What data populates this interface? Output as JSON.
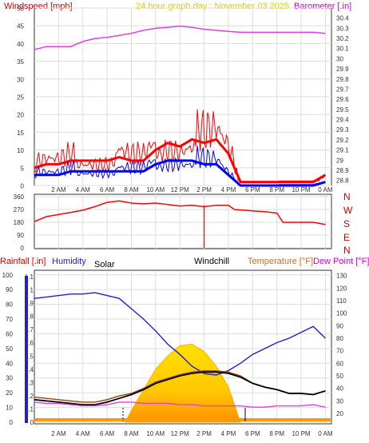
{
  "chart_data": [
    {
      "type": "line",
      "panel": "wind-barometer",
      "title": "24 hour graph day : November 03 2025",
      "left_label": "Windspeed [mph]",
      "right_label": "Barometer [.in]",
      "x_ticks": [
        "2 AM",
        "4 AM",
        "6 AM",
        "8 AM",
        "10 AM",
        "12 PM",
        "2 PM",
        "4 PM",
        "6 PM",
        "8 PM",
        "10 PM",
        "0 AM"
      ],
      "x_range_hours": [
        0,
        24.5
      ],
      "y_left_ticks": [
        "0",
        "5",
        "10",
        "15",
        "20",
        "25",
        "30",
        "35",
        "40",
        "45",
        "50"
      ],
      "y_left_range": [
        0,
        50
      ],
      "y_right_ticks": [
        "28.8",
        "28.9",
        "29",
        "29.1",
        "29.2",
        "29.3",
        "29.4",
        "29.5",
        "29.6",
        "29.7",
        "29.8",
        "29.9",
        "30",
        "30.1",
        "30.2",
        "30.3",
        "30.4"
      ],
      "y_right_range": [
        28.75,
        30.5
      ],
      "series": [
        {
          "name": "Barometer [.in]",
          "axis": "right",
          "color": "#e040e0",
          "x": [
            0,
            1,
            2,
            3,
            4,
            5,
            6,
            7,
            8,
            9,
            10,
            11,
            12,
            13,
            14,
            15,
            16,
            17,
            18,
            19,
            20,
            21,
            22,
            23,
            24
          ],
          "y": [
            30.09,
            30.12,
            30.12,
            30.12,
            30.17,
            30.2,
            30.21,
            30.23,
            30.25,
            30.28,
            30.3,
            30.31,
            30.32,
            30.31,
            30.29,
            30.28,
            30.27,
            30.26,
            30.26,
            30.26,
            30.26,
            30.26,
            30.26,
            30.26,
            30.25
          ]
        },
        {
          "name": "Windspeed",
          "axis": "left",
          "color": "#ff0000",
          "x": [
            0,
            1,
            2,
            3,
            4,
            5,
            6,
            7,
            8,
            9,
            10,
            11,
            12,
            13,
            14,
            15,
            16,
            17,
            18,
            19,
            20,
            21,
            22,
            23,
            24
          ],
          "y": [
            5,
            6,
            6,
            7,
            7,
            7,
            7,
            8,
            7,
            7,
            10,
            12,
            11,
            13,
            12,
            13,
            9,
            1,
            1,
            1,
            1,
            1,
            1,
            1,
            3
          ]
        },
        {
          "name": "Average windspeed",
          "axis": "left",
          "color": "#0000ff",
          "x": [
            0,
            1,
            2,
            3,
            4,
            5,
            6,
            7,
            8,
            9,
            10,
            11,
            12,
            13,
            14,
            15,
            16,
            17,
            18,
            19,
            20,
            21,
            22,
            23,
            24
          ],
          "y": [
            3,
            3,
            3,
            4,
            4,
            4,
            4,
            4,
            4,
            4,
            6,
            7,
            7,
            7,
            6,
            6,
            3,
            0,
            0,
            0,
            0,
            0,
            0,
            0,
            1
          ]
        }
      ]
    },
    {
      "type": "line",
      "panel": "wind-direction",
      "y_ticks": [
        "0",
        "90",
        "180",
        "270",
        "360"
      ],
      "y_range": [
        0,
        360
      ],
      "direction_labels": [
        "N",
        "W",
        "S",
        "E",
        "N"
      ],
      "series": [
        {
          "name": "Wind direction",
          "color": "#ff0000",
          "x": [
            0,
            1,
            2,
            3,
            4,
            5,
            6,
            7,
            8,
            9,
            10,
            11,
            12,
            13,
            14,
            15,
            16,
            16.5,
            18,
            19,
            20,
            20.5,
            22,
            23,
            24
          ],
          "y": [
            185,
            220,
            235,
            250,
            265,
            290,
            320,
            330,
            315,
            310,
            315,
            305,
            295,
            300,
            290,
            300,
            300,
            270,
            260,
            255,
            245,
            180,
            180,
            180,
            165
          ]
        }
      ]
    },
    {
      "type": "line",
      "panel": "temperature-humidity",
      "left_label": "Rainfall [.in]",
      "humidity_label": "Humidity",
      "solar_label": "Solar",
      "windchill_label": "Windchill",
      "right_label": "Temperature [°F]",
      "dewpoint_label": "Dew Point [°F]",
      "y_humidity_ticks": [
        "0",
        "10",
        "20",
        "30",
        "40",
        "50",
        "60",
        "70",
        "80",
        "90",
        "100"
      ],
      "y_humidity_range": [
        0,
        100
      ],
      "y_rain_ticks": [
        "0",
        "0.1",
        "0.2",
        "0.3",
        "0.4",
        "0.5",
        "0.6",
        "0.7",
        "0.8",
        "0.9",
        "1",
        "1.1"
      ],
      "y_temp_ticks": [
        "20",
        "30",
        "40",
        "50",
        "60",
        "70",
        "80",
        "90",
        "100",
        "110",
        "120",
        "130"
      ],
      "y_temp_range": [
        13,
        133
      ],
      "series": [
        {
          "name": "Humidity",
          "color": "#2020cc",
          "x": [
            0,
            1,
            2,
            3,
            4,
            5,
            6,
            7,
            8,
            9,
            10,
            11,
            12,
            13,
            14,
            15,
            16,
            17,
            18,
            19,
            20,
            21,
            22,
            23,
            24
          ],
          "y": [
            84,
            85,
            86,
            87,
            87,
            88,
            86,
            84,
            77,
            70,
            62,
            53,
            46,
            38,
            33,
            32,
            35,
            40,
            46,
            50,
            54,
            57,
            61,
            65,
            57
          ]
        },
        {
          "name": "Temperature [°F]",
          "color": "#8b4513",
          "x": [
            0,
            1,
            2,
            3,
            4,
            5,
            6,
            7,
            8,
            9,
            10,
            11,
            12,
            13,
            14,
            15,
            16,
            17,
            18,
            19,
            20,
            21,
            22,
            23,
            24
          ],
          "y": [
            33,
            32,
            31,
            30,
            29,
            29,
            31,
            34,
            36,
            40,
            45,
            48,
            51,
            53,
            54,
            54,
            53,
            50,
            44,
            41,
            39,
            36,
            36,
            35,
            38
          ]
        },
        {
          "name": "Windchill",
          "color": "#000000",
          "x": [
            0,
            1,
            2,
            3,
            4,
            5,
            6,
            7,
            8,
            9,
            10,
            11,
            12,
            13,
            14,
            15,
            16,
            17,
            18,
            19,
            20,
            21,
            22,
            23,
            24
          ],
          "y": [
            31,
            30,
            29,
            28,
            27,
            27,
            29,
            32,
            35,
            39,
            44,
            47,
            50,
            52,
            53,
            53,
            52,
            49,
            44,
            41,
            39,
            36,
            36,
            35,
            38
          ]
        },
        {
          "name": "Dew Point [°F]",
          "color": "#e040e0",
          "x": [
            0,
            1,
            2,
            3,
            4,
            5,
            6,
            7,
            8,
            9,
            10,
            11,
            12,
            13,
            14,
            15,
            16,
            17,
            18,
            19,
            20,
            21,
            22,
            23,
            24
          ],
          "y": [
            29,
            28,
            28,
            27,
            26,
            26,
            27,
            29,
            29,
            28,
            28,
            28,
            27,
            27,
            26,
            26,
            26,
            26,
            25,
            25,
            26,
            26,
            26,
            27,
            25
          ]
        },
        {
          "name": "Solar",
          "color": "#ffd700",
          "x": [
            7.5,
            8,
            9,
            10,
            11,
            12,
            13,
            14,
            15,
            16,
            17
          ],
          "y": [
            0,
            8,
            22,
            36,
            45,
            52,
            53,
            48,
            38,
            24,
            0
          ]
        }
      ]
    }
  ]
}
